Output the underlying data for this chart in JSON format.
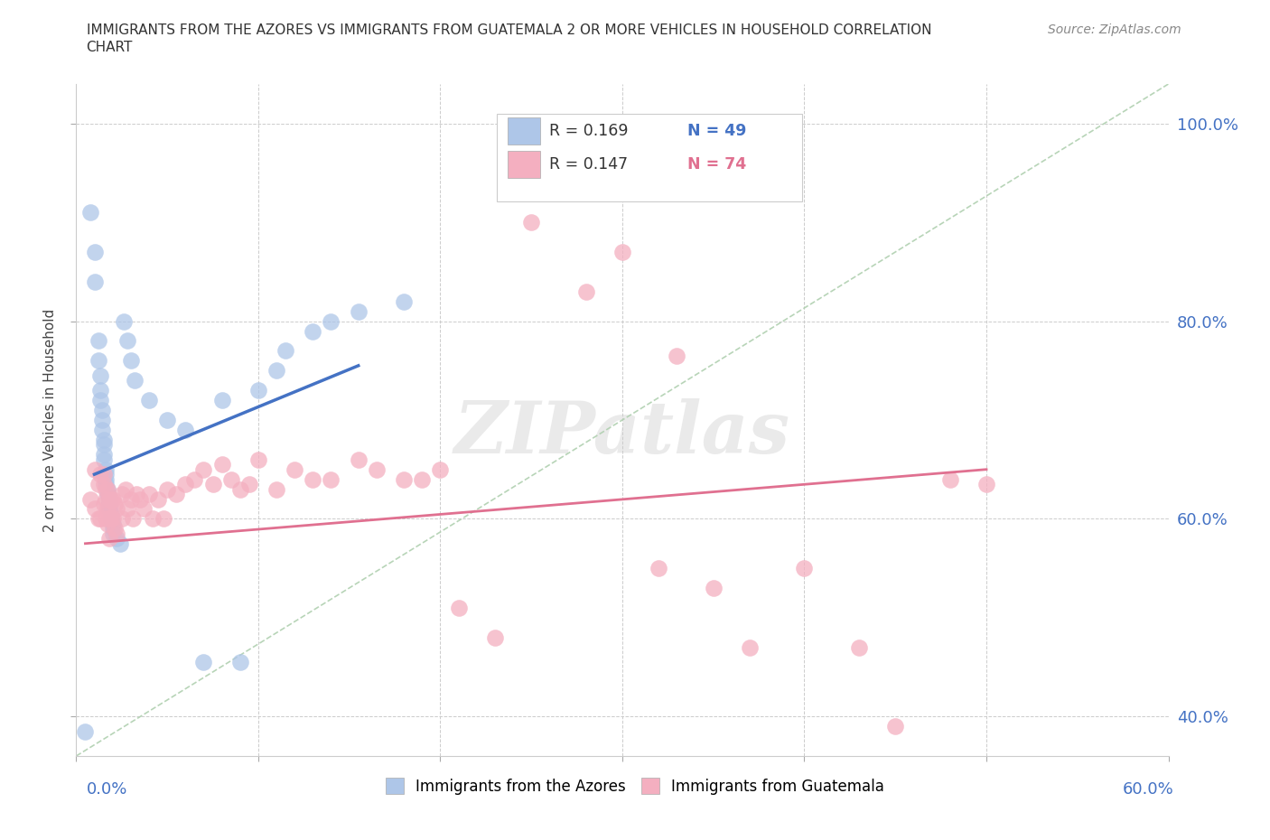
{
  "title_line1": "IMMIGRANTS FROM THE AZORES VS IMMIGRANTS FROM GUATEMALA 2 OR MORE VEHICLES IN HOUSEHOLD CORRELATION",
  "title_line2": "CHART",
  "source": "Source: ZipAtlas.com",
  "xlim": [
    0.0,
    0.6
  ],
  "ylim": [
    0.36,
    1.04
  ],
  "azores_R": 0.169,
  "azores_N": 49,
  "guatemala_R": 0.147,
  "guatemala_N": 74,
  "azores_color": "#aec6e8",
  "guatemala_color": "#f4afc0",
  "azores_line_color": "#4472c4",
  "guatemala_line_color": "#e07090",
  "ref_line_color": "#b0d0b0",
  "azores_x": [
    0.005,
    0.008,
    0.01,
    0.01,
    0.012,
    0.012,
    0.013,
    0.013,
    0.013,
    0.014,
    0.014,
    0.014,
    0.015,
    0.015,
    0.015,
    0.015,
    0.016,
    0.016,
    0.016,
    0.016,
    0.017,
    0.017,
    0.018,
    0.018,
    0.018,
    0.019,
    0.019,
    0.02,
    0.02,
    0.02,
    0.022,
    0.024,
    0.026,
    0.028,
    0.03,
    0.032,
    0.04,
    0.05,
    0.06,
    0.07,
    0.08,
    0.09,
    0.1,
    0.11,
    0.115,
    0.13,
    0.14,
    0.155,
    0.18
  ],
  "azores_y": [
    0.385,
    0.91,
    0.87,
    0.84,
    0.78,
    0.76,
    0.745,
    0.73,
    0.72,
    0.71,
    0.7,
    0.69,
    0.68,
    0.675,
    0.665,
    0.66,
    0.65,
    0.645,
    0.64,
    0.635,
    0.63,
    0.625,
    0.62,
    0.615,
    0.61,
    0.605,
    0.6,
    0.595,
    0.59,
    0.585,
    0.58,
    0.575,
    0.8,
    0.78,
    0.76,
    0.74,
    0.72,
    0.7,
    0.69,
    0.455,
    0.72,
    0.455,
    0.73,
    0.75,
    0.77,
    0.79,
    0.8,
    0.81,
    0.82
  ],
  "guatemala_x": [
    0.008,
    0.01,
    0.01,
    0.012,
    0.012,
    0.013,
    0.013,
    0.015,
    0.015,
    0.015,
    0.016,
    0.016,
    0.016,
    0.017,
    0.017,
    0.017,
    0.018,
    0.018,
    0.018,
    0.019,
    0.019,
    0.02,
    0.02,
    0.021,
    0.021,
    0.022,
    0.022,
    0.025,
    0.025,
    0.027,
    0.028,
    0.03,
    0.031,
    0.033,
    0.035,
    0.037,
    0.04,
    0.042,
    0.045,
    0.048,
    0.05,
    0.055,
    0.06,
    0.065,
    0.07,
    0.075,
    0.08,
    0.085,
    0.09,
    0.095,
    0.1,
    0.11,
    0.12,
    0.13,
    0.14,
    0.155,
    0.165,
    0.18,
    0.19,
    0.2,
    0.21,
    0.23,
    0.25,
    0.28,
    0.3,
    0.33,
    0.37,
    0.4,
    0.43,
    0.45,
    0.48,
    0.5,
    0.32,
    0.35
  ],
  "guatemala_y": [
    0.62,
    0.65,
    0.61,
    0.635,
    0.6,
    0.645,
    0.6,
    0.645,
    0.635,
    0.615,
    0.63,
    0.62,
    0.6,
    0.63,
    0.61,
    0.595,
    0.62,
    0.6,
    0.58,
    0.62,
    0.6,
    0.62,
    0.6,
    0.615,
    0.59,
    0.61,
    0.585,
    0.625,
    0.6,
    0.63,
    0.61,
    0.62,
    0.6,
    0.625,
    0.62,
    0.61,
    0.625,
    0.6,
    0.62,
    0.6,
    0.63,
    0.625,
    0.635,
    0.64,
    0.65,
    0.635,
    0.655,
    0.64,
    0.63,
    0.635,
    0.66,
    0.63,
    0.65,
    0.64,
    0.64,
    0.66,
    0.65,
    0.64,
    0.64,
    0.65,
    0.51,
    0.48,
    0.9,
    0.83,
    0.87,
    0.765,
    0.47,
    0.55,
    0.47,
    0.39,
    0.64,
    0.635,
    0.55,
    0.53
  ]
}
